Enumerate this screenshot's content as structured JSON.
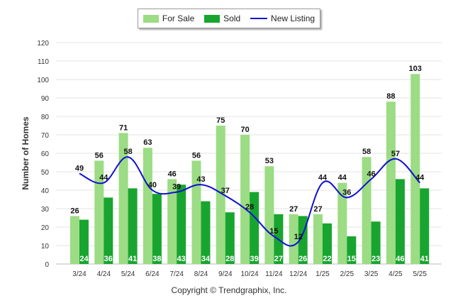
{
  "chart_data": {
    "type": "bar",
    "categories": [
      "3/24",
      "4/24",
      "5/24",
      "6/24",
      "7/24",
      "8/24",
      "9/24",
      "10/24",
      "11/24",
      "12/24",
      "1/25",
      "2/25",
      "3/25",
      "4/25",
      "5/25"
    ],
    "series": [
      {
        "name": "For Sale",
        "type": "bar",
        "color": "#9cdc84",
        "values": [
          26,
          56,
          71,
          63,
          46,
          56,
          75,
          70,
          53,
          27,
          27,
          44,
          58,
          88,
          103
        ]
      },
      {
        "name": "Sold",
        "type": "bar",
        "color": "#18a52f",
        "values": [
          24,
          36,
          41,
          38,
          43,
          34,
          28,
          39,
          27,
          26,
          22,
          15,
          23,
          46,
          41
        ]
      },
      {
        "name": "New Listing",
        "type": "line",
        "color": "#1010d0",
        "values": [
          49,
          44,
          58,
          40,
          39,
          43,
          37,
          28,
          15,
          12,
          44,
          36,
          46,
          57,
          44
        ]
      }
    ],
    "ylabel": "Number of Homes",
    "xlabel": "",
    "ylim": [
      0,
      120
    ],
    "yticks": [
      0,
      10,
      20,
      30,
      40,
      50,
      60,
      70,
      80,
      90,
      100,
      110,
      120
    ],
    "grid": true,
    "legend_position": "top-center"
  },
  "footer": {
    "copyright": "Copyright © Trendgraphix, Inc."
  }
}
